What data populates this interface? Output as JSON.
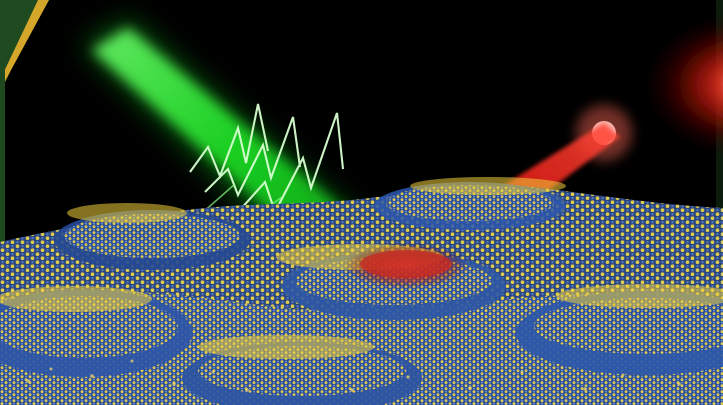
{
  "scene": {
    "frame_color": "#1f4a1f",
    "frame_accent": "#d4a62a",
    "background": "#000000",
    "green_beam_color": "#35ff3a",
    "red_beam_color": "#ff1a10",
    "lattice_blue": "#2f57a6",
    "lattice_yellow": "#f1d84a",
    "red_spot_color": "#d7322a"
  }
}
